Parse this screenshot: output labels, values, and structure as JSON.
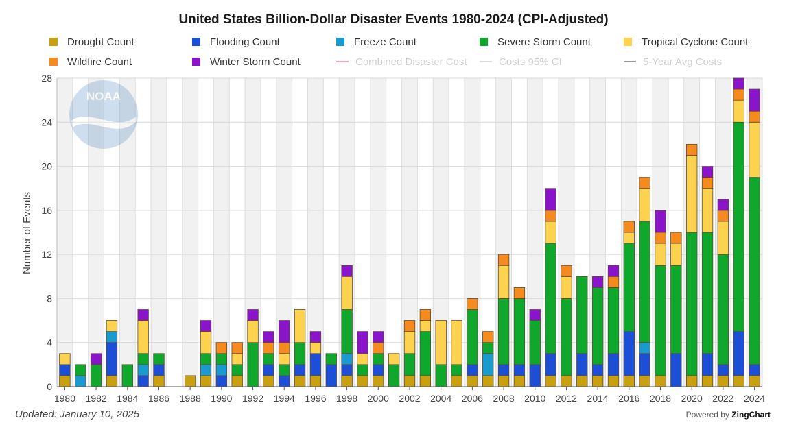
{
  "title": "United States Billion-Dollar Disaster Events 1980-2024 (CPI-Adjusted)",
  "updated": "Updated: January 10, 2025",
  "powered_prefix": "Powered by",
  "powered_brand": "ZingChart",
  "logo_text": "NOAA",
  "legend": [
    {
      "label": "Drought Count",
      "color": "#c9a010",
      "kind": "box",
      "enabled": true
    },
    {
      "label": "Flooding Count",
      "color": "#1c4fd6",
      "kind": "box",
      "enabled": true
    },
    {
      "label": "Freeze Count",
      "color": "#1a9bd0",
      "kind": "box",
      "enabled": true
    },
    {
      "label": "Severe Storm Count",
      "color": "#0fa82c",
      "kind": "box",
      "enabled": true
    },
    {
      "label": "Tropical Cyclone Count",
      "color": "#fdd24f",
      "kind": "box",
      "enabled": true
    },
    {
      "label": "Wildfire Count",
      "color": "#f58a1f",
      "kind": "box",
      "enabled": true
    },
    {
      "label": "Winter Storm Count",
      "color": "#8a14c9",
      "kind": "box",
      "enabled": true
    },
    {
      "label": "Combined Disaster Cost",
      "color": "#f4a6b4",
      "kind": "line",
      "enabled": false
    },
    {
      "label": "Costs 95% CI",
      "color": "#dddddd",
      "kind": "line",
      "enabled": false
    },
    {
      "label": "5-Year Avg Costs",
      "color": "#999999",
      "kind": "line",
      "enabled": false
    }
  ],
  "chart_data": {
    "type": "bar",
    "stacked": true,
    "title": "United States Billion-Dollar Disaster Events 1980-2024 (CPI-Adjusted)",
    "xlabel": "",
    "ylabel": "Number of Events",
    "ylim": [
      0,
      28
    ],
    "yticks": [
      0,
      4,
      8,
      12,
      16,
      20,
      24,
      28
    ],
    "xtick_labels": [
      "1980",
      "1982",
      "1984",
      "1986",
      "1988",
      "1990",
      "1992",
      "1994",
      "1996",
      "1998",
      "2000",
      "2002",
      "2004",
      "2006",
      "2008",
      "2010",
      "2012",
      "2014",
      "2016",
      "2018",
      "2020",
      "2022",
      "2024"
    ],
    "grid": true,
    "legend_position": "top",
    "categories": [
      "1980",
      "1981",
      "1982",
      "1983",
      "1984",
      "1985",
      "1986",
      "1987",
      "1988",
      "1989",
      "1990",
      "1991",
      "1992",
      "1993",
      "1994",
      "1995",
      "1996",
      "1997",
      "1998",
      "1999",
      "2000",
      "2001",
      "2002",
      "2003",
      "2004",
      "2005",
      "2006",
      "2007",
      "2008",
      "2009",
      "2010",
      "2011",
      "2012",
      "2013",
      "2014",
      "2015",
      "2016",
      "2017",
      "2018",
      "2019",
      "2020",
      "2021",
      "2022",
      "2023",
      "2024"
    ],
    "series": [
      {
        "name": "Drought Count",
        "color": "#c9a010",
        "values": [
          1,
          0,
          0,
          1,
          0,
          0,
          1,
          0,
          1,
          1,
          0,
          1,
          0,
          1,
          0,
          1,
          1,
          0,
          1,
          1,
          1,
          0,
          1,
          1,
          0,
          1,
          1,
          1,
          1,
          1,
          0,
          1,
          1,
          1,
          1,
          1,
          1,
          1,
          1,
          0,
          1,
          1,
          1,
          1,
          1
        ]
      },
      {
        "name": "Flooding Count",
        "color": "#1c4fd6",
        "values": [
          1,
          0,
          0,
          3,
          0,
          1,
          1,
          0,
          0,
          0,
          1,
          0,
          0,
          1,
          1,
          1,
          2,
          2,
          1,
          0,
          1,
          0,
          0,
          0,
          0,
          0,
          1,
          0,
          1,
          1,
          2,
          2,
          0,
          2,
          1,
          2,
          4,
          2,
          0,
          3,
          0,
          2,
          1,
          4,
          1
        ]
      },
      {
        "name": "Freeze Count",
        "color": "#1a9bd0",
        "values": [
          0,
          1,
          0,
          1,
          0,
          1,
          0,
          0,
          0,
          1,
          1,
          0,
          0,
          0,
          0,
          0,
          0,
          0,
          1,
          0,
          0,
          0,
          0,
          0,
          0,
          0,
          0,
          2,
          0,
          0,
          0,
          0,
          0,
          0,
          0,
          0,
          0,
          1,
          0,
          0,
          0,
          0,
          0,
          0,
          0
        ]
      },
      {
        "name": "Severe Storm Count",
        "color": "#0fa82c",
        "values": [
          0,
          1,
          2,
          0,
          2,
          1,
          1,
          0,
          0,
          1,
          1,
          1,
          4,
          1,
          1,
          2,
          0,
          1,
          4,
          1,
          1,
          2,
          2,
          4,
          2,
          1,
          5,
          1,
          6,
          6,
          4,
          10,
          7,
          7,
          7,
          6,
          8,
          11,
          10,
          8,
          13,
          11,
          10,
          19,
          17
        ]
      },
      {
        "name": "Tropical Cyclone Count",
        "color": "#fdd24f",
        "values": [
          1,
          0,
          0,
          1,
          0,
          3,
          0,
          0,
          0,
          2,
          0,
          1,
          2,
          0,
          1,
          3,
          1,
          0,
          3,
          1,
          0,
          1,
          2,
          1,
          4,
          4,
          0,
          0,
          3,
          0,
          0,
          2,
          2,
          0,
          0,
          0,
          1,
          3,
          2,
          2,
          7,
          4,
          3,
          2,
          5
        ]
      },
      {
        "name": "Wildfire Count",
        "color": "#f58a1f",
        "values": [
          0,
          0,
          0,
          0,
          0,
          0,
          0,
          0,
          0,
          0,
          1,
          1,
          0,
          1,
          1,
          0,
          0,
          0,
          0,
          0,
          1,
          0,
          1,
          1,
          0,
          0,
          1,
          1,
          1,
          1,
          0,
          1,
          1,
          0,
          0,
          1,
          1,
          1,
          1,
          1,
          1,
          1,
          1,
          1,
          1
        ]
      },
      {
        "name": "Winter Storm Count",
        "color": "#8a14c9",
        "values": [
          0,
          0,
          1,
          0,
          0,
          1,
          0,
          0,
          0,
          1,
          0,
          0,
          1,
          1,
          2,
          0,
          1,
          0,
          1,
          2,
          1,
          0,
          0,
          0,
          0,
          0,
          0,
          0,
          0,
          0,
          1,
          2,
          0,
          0,
          1,
          1,
          0,
          0,
          2,
          0,
          0,
          1,
          1,
          1,
          2
        ]
      }
    ]
  }
}
